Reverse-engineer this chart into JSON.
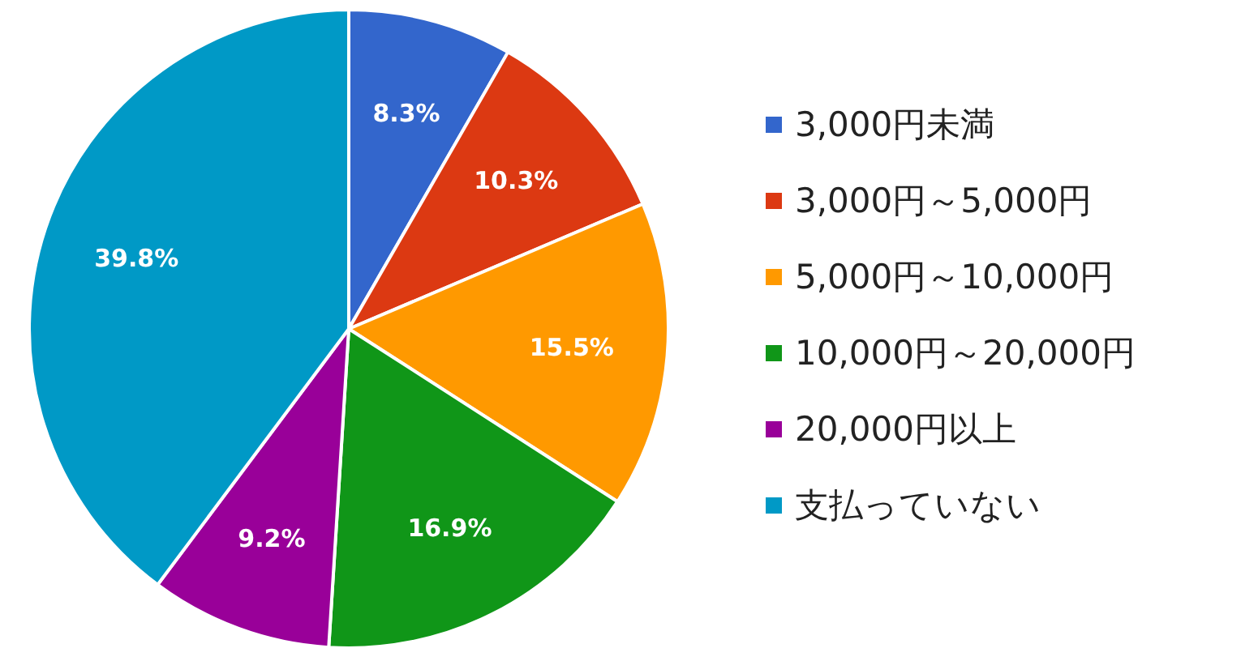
{
  "chart_data": {
    "type": "pie",
    "categories": [
      "3,000円未満",
      "3,000円～5,000円",
      "5,000円～10,000円",
      "10,000円～20,000円",
      "20,000円以上",
      "支払っていない"
    ],
    "values": [
      8.3,
      10.3,
      15.5,
      16.9,
      9.2,
      39.8
    ],
    "colors": [
      "#3366cc",
      "#dc3912",
      "#ff9900",
      "#109618",
      "#990099",
      "#0099c6"
    ],
    "value_labels": [
      "8.3%",
      "10.3%",
      "15.5%",
      "16.9%",
      "9.2%",
      "39.8%"
    ],
    "legend": "right"
  }
}
